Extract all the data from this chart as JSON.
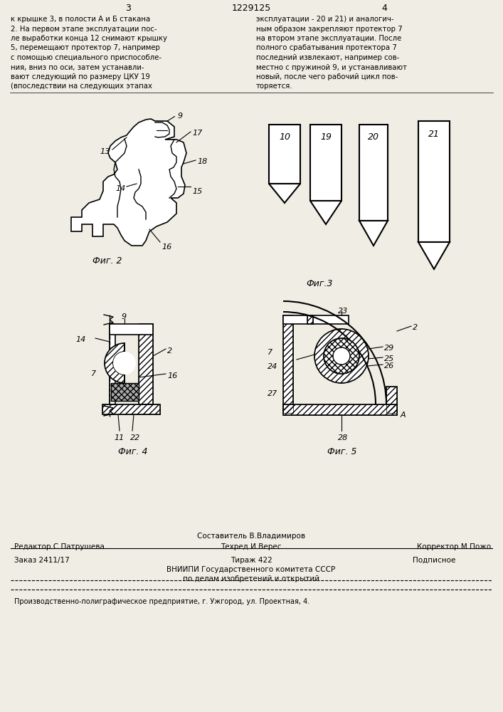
{
  "bg_color": "#f0ede4",
  "page_header": {
    "left_num": "3",
    "center_title": "1229125",
    "right_num": "4"
  },
  "top_left_text": [
    "к крышке 3, в полости А и Б стакана",
    "2. На первом этапе эксплуатации пос-",
    "ле выработки конца 12 снимают крышку",
    "5, перемещают протектор 7, например",
    "с помощью специального приспособле-",
    "ния, вниз по оси, затем устанавли-",
    "вают следующий по размеру ЦКУ 19",
    "(впоследствии на следующих этапах"
  ],
  "top_right_text": [
    "эксплуатации - 20 и 21) и аналогич-",
    "ным образом закрепляют протектор 7",
    "на втором этапе эксплуатации. После",
    "полного срабатывания протектора 7",
    "последний извлекают, например сов-",
    "местно с пружиной 9, и устанавливают",
    "новый, после чего рабочий цикл пов-",
    "торяется."
  ],
  "footer": {
    "editor": "Редактор С.Патрушева",
    "composer_top": "Составитель В.Владимиров",
    "techred": "Техред И.Верес",
    "corrector": "Корректор М.Пожо",
    "order": "Заказ 2411/17",
    "tirazh": "Тираж 422",
    "podpisnoe": "Подписное",
    "vniipи1": "ВНИИПИ Государственного комитета СССР",
    "vniipи2": "по делам изобретений и открытий",
    "factory": "Производственно-полиграфическое предприятие, г. Ужгород, ул. Проектная, 4."
  }
}
